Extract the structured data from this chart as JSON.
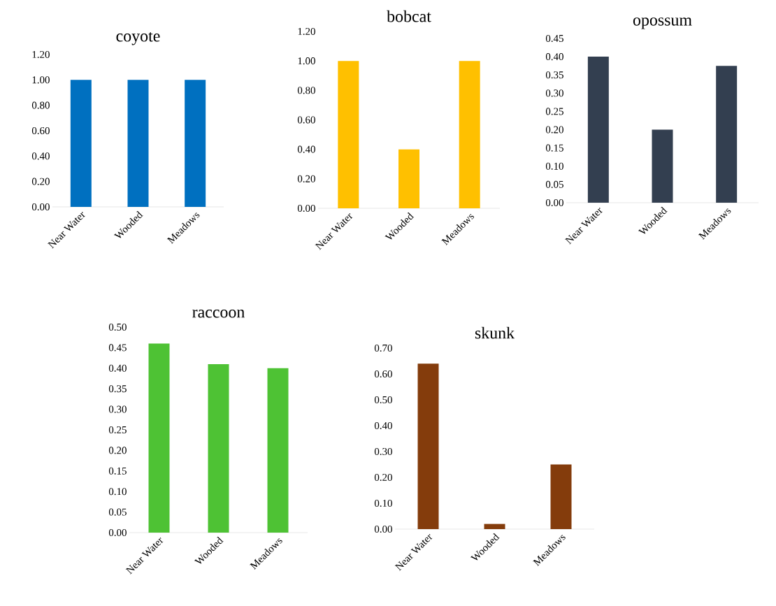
{
  "chart_data": [
    {
      "type": "bar",
      "title": "coyote",
      "categories": [
        "Near Water",
        "Wooded",
        "Meadows"
      ],
      "values": [
        1.0,
        1.0,
        1.0
      ],
      "color": "#0070c0",
      "ylim": [
        0,
        1.2
      ],
      "yticks": [
        {
          "value": 0,
          "label": "0.00"
        },
        {
          "value": 0.2,
          "label": "0.20"
        },
        {
          "value": 0.4,
          "label": "0.40"
        },
        {
          "value": 0.6,
          "label": "0.60"
        },
        {
          "value": 0.8,
          "label": "0.80"
        },
        {
          "value": 1.0,
          "label": "1.00"
        },
        {
          "value": 1.2,
          "label": "1.20"
        }
      ]
    },
    {
      "type": "bar",
      "title": "bobcat",
      "categories": [
        "Near Water",
        "Wooded",
        "Meadows"
      ],
      "values": [
        1.0,
        0.4,
        1.0
      ],
      "color": "#ffc000",
      "ylim": [
        0,
        1.2
      ],
      "yticks": [
        {
          "value": 0,
          "label": "0.00"
        },
        {
          "value": 0.2,
          "label": "0.20"
        },
        {
          "value": 0.4,
          "label": "0.40"
        },
        {
          "value": 0.6,
          "label": "0.60"
        },
        {
          "value": 0.8,
          "label": "0.80"
        },
        {
          "value": 1.0,
          "label": "1.00"
        },
        {
          "value": 1.2,
          "label": "1.20"
        }
      ]
    },
    {
      "type": "bar",
      "title": "opossum",
      "categories": [
        "Near Water",
        "Wooded",
        "Meadows"
      ],
      "values": [
        0.4,
        0.2,
        0.375
      ],
      "color": "#333f50",
      "ylim": [
        0,
        0.45
      ],
      "yticks": [
        {
          "value": 0,
          "label": "0.00"
        },
        {
          "value": 0.05,
          "label": "0.05"
        },
        {
          "value": 0.1,
          "label": "0.10"
        },
        {
          "value": 0.15,
          "label": "0.15"
        },
        {
          "value": 0.2,
          "label": "0.20"
        },
        {
          "value": 0.25,
          "label": "0.25"
        },
        {
          "value": 0.3,
          "label": "0.30"
        },
        {
          "value": 0.35,
          "label": "0.35"
        },
        {
          "value": 0.4,
          "label": "0.40"
        },
        {
          "value": 0.45,
          "label": "0.45"
        }
      ]
    },
    {
      "type": "bar",
      "title": "raccoon",
      "categories": [
        "Near Water",
        "Wooded",
        "Meadows"
      ],
      "values": [
        0.46,
        0.41,
        0.4
      ],
      "color": "#4ec234",
      "ylim": [
        0,
        0.5
      ],
      "yticks": [
        {
          "value": 0,
          "label": "0.00"
        },
        {
          "value": 0.05,
          "label": "0.05"
        },
        {
          "value": 0.1,
          "label": "0.10"
        },
        {
          "value": 0.15,
          "label": "0.15"
        },
        {
          "value": 0.2,
          "label": "0.20"
        },
        {
          "value": 0.25,
          "label": "0.25"
        },
        {
          "value": 0.3,
          "label": "0.30"
        },
        {
          "value": 0.35,
          "label": "0.35"
        },
        {
          "value": 0.4,
          "label": "0.40"
        },
        {
          "value": 0.45,
          "label": "0.45"
        },
        {
          "value": 0.5,
          "label": "0.50"
        }
      ]
    },
    {
      "type": "bar",
      "title": "skunk",
      "categories": [
        "Near Water",
        "Wooded",
        "Meadows"
      ],
      "values": [
        0.64,
        0.02,
        0.25
      ],
      "color": "#843c0c",
      "ylim": [
        0,
        0.7
      ],
      "yticks": [
        {
          "value": 0,
          "label": "0.00"
        },
        {
          "value": 0.1,
          "label": "0.10"
        },
        {
          "value": 0.2,
          "label": "0.20"
        },
        {
          "value": 0.3,
          "label": "0.30"
        },
        {
          "value": 0.4,
          "label": "0.40"
        },
        {
          "value": 0.5,
          "label": "0.50"
        },
        {
          "value": 0.6,
          "label": "0.60"
        },
        {
          "value": 0.7,
          "label": "0.70"
        }
      ]
    }
  ]
}
